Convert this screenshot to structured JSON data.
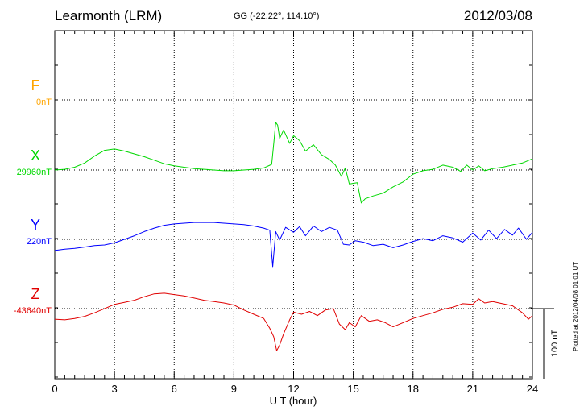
{
  "chart_data": {
    "type": "line",
    "title": "Learmonth (LRM)",
    "subtitle": "GG (-22.22°, 114.10°)",
    "date": "2012/03/08",
    "xlabel": "U T (hour)",
    "xlim": [
      0,
      24
    ],
    "xticks": [
      "0",
      "3",
      "6",
      "9",
      "12",
      "15",
      "18",
      "21",
      "24"
    ],
    "scale_label": "100 nT",
    "scale_nT": 100,
    "grid": true,
    "footer": "Plotted at 2012/04/08 01:01  UT",
    "series": [
      {
        "name": "F",
        "base_label": "0nT",
        "color": "#ffa500",
        "baseline_nT": 0,
        "x": [],
        "values": []
      },
      {
        "name": "X",
        "base_label": "29960nT",
        "color": "#00d800",
        "baseline_nT": 29960,
        "x": [
          0,
          0.5,
          1,
          1.5,
          2,
          2.5,
          3,
          3.5,
          4,
          4.5,
          5,
          5.5,
          6,
          6.5,
          7,
          7.5,
          8,
          8.5,
          9,
          9.5,
          10,
          10.5,
          10.9,
          11.0,
          11.1,
          11.2,
          11.3,
          11.5,
          11.8,
          12,
          12.3,
          12.6,
          13,
          13.4,
          13.8,
          14.1,
          14.4,
          14.6,
          14.8,
          15.0,
          15.2,
          15.4,
          15.6,
          16,
          16.5,
          17,
          17.5,
          18,
          18.5,
          19,
          19.5,
          20,
          20.4,
          20.7,
          21,
          21.3,
          21.6,
          22,
          22.5,
          23,
          23.5,
          24
        ],
        "values": [
          29960,
          29961,
          29964,
          29970,
          29980,
          29988,
          29990,
          29987,
          29983,
          29979,
          29974,
          29969,
          29966,
          29964,
          29962,
          29961,
          29960,
          29959,
          29959,
          29960,
          29961,
          29963,
          29968,
          29997,
          30028,
          30024,
          30005,
          30017,
          29998,
          30009,
          30002,
          29987,
          29996,
          29982,
          29975,
          29967,
          29951,
          29963,
          29940,
          29941,
          29942,
          29913,
          29919,
          29923,
          29927,
          29936,
          29943,
          29954,
          29959,
          29961,
          29967,
          29964,
          29958,
          29967,
          29960,
          29966,
          29959,
          29962,
          29964,
          29967,
          29970,
          29976
        ]
      },
      {
        "name": "Y",
        "base_label": "220nT",
        "color": "#0000ff",
        "baseline_nT": 220,
        "x": [
          0,
          0.5,
          1,
          1.5,
          2,
          2.5,
          3,
          3.5,
          4,
          4.5,
          5,
          5.5,
          6,
          6.5,
          7,
          7.5,
          8,
          8.5,
          9,
          9.5,
          10,
          10.5,
          10.8,
          10.95,
          11.1,
          11.3,
          11.6,
          12,
          12.3,
          12.6,
          13,
          13.4,
          13.8,
          14.2,
          14.5,
          14.8,
          15.1,
          15.5,
          16,
          16.5,
          17,
          17.5,
          18,
          18.5,
          19,
          19.5,
          20,
          20.5,
          21,
          21.4,
          21.8,
          22.2,
          22.6,
          23,
          23.3,
          23.7,
          24
        ],
        "values": [
          204,
          206,
          207,
          209,
          211,
          212,
          215,
          220,
          225,
          231,
          236,
          240,
          242,
          243,
          244,
          244,
          244,
          243,
          242,
          241,
          239,
          236,
          233,
          181,
          231,
          219,
          237,
          230,
          238,
          225,
          239,
          231,
          237,
          233,
          213,
          212,
          218,
          216,
          211,
          213,
          208,
          212,
          217,
          221,
          218,
          225,
          222,
          216,
          229,
          219,
          233,
          221,
          234,
          226,
          236,
          220,
          230
        ]
      },
      {
        "name": "Z",
        "base_label": "-43640nT",
        "color": "#e00000",
        "baseline_nT": -43640,
        "x": [
          0,
          0.5,
          1,
          1.5,
          2,
          2.5,
          3,
          3.5,
          4,
          4.5,
          5,
          5.5,
          6,
          6.5,
          7,
          7.5,
          8,
          8.5,
          9,
          9.5,
          10,
          10.5,
          10.8,
          11.0,
          11.15,
          11.3,
          11.5,
          11.8,
          12,
          12.4,
          12.8,
          13.2,
          13.6,
          14,
          14.3,
          14.6,
          14.8,
          15.1,
          15.4,
          15.8,
          16.2,
          16.6,
          17,
          17.5,
          18,
          18.5,
          19,
          19.5,
          20,
          20.5,
          21,
          21.3,
          21.6,
          22,
          22.5,
          23,
          23.5,
          23.8,
          24
        ],
        "values": [
          -43655,
          -43656,
          -43654,
          -43651,
          -43646,
          -43640,
          -43634,
          -43631,
          -43628,
          -43623,
          -43619,
          -43618,
          -43620,
          -43622,
          -43625,
          -43628,
          -43630,
          -43632,
          -43635,
          -43642,
          -43648,
          -43654,
          -43668,
          -43680,
          -43700,
          -43692,
          -43676,
          -43656,
          -43645,
          -43648,
          -43644,
          -43650,
          -43642,
          -43640,
          -43662,
          -43670,
          -43660,
          -43666,
          -43650,
          -43658,
          -43656,
          -43660,
          -43666,
          -43660,
          -43654,
          -43650,
          -43646,
          -43641,
          -43638,
          -43633,
          -43634,
          -43626,
          -43632,
          -43630,
          -43633,
          -43636,
          -43646,
          -43655,
          -43650
        ]
      }
    ]
  }
}
